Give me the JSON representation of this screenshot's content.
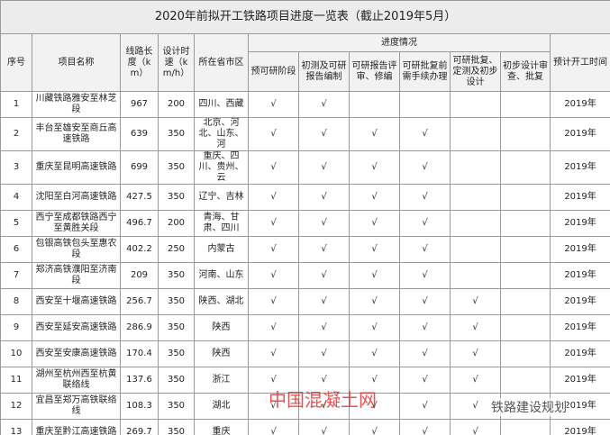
{
  "title": "2020年前拟开工铁路项目进度一览表（截止2019年5月）",
  "header": {
    "columns": [
      "序号",
      "项目名称",
      "线路长度（km）",
      "设计时速（km/h）",
      "所在省市区"
    ],
    "progress_group": "进度情况",
    "progress_columns": [
      "预可研阶段",
      "初测及可研报告编制",
      "可研报告评审、修编",
      "可研批复前需手续办理",
      "可研批复、定测及初步设计",
      "初步设计审查、批复"
    ],
    "last_column": "预计开工时间"
  },
  "table": {
    "rows": [
      [
        "1",
        "川藏铁路雅安至林芝段",
        967,
        200,
        "四川、西藏",
        "√",
        "√",
        null,
        null,
        null,
        null,
        "2019年"
      ],
      [
        "2",
        "丰台至雄安至商丘高速铁路",
        639,
        350,
        "北京、河北、山东、河",
        "√",
        "√",
        "√",
        "√",
        null,
        null,
        "2019年"
      ],
      [
        "3",
        "重庆至昆明高速铁路",
        699,
        350,
        "重庆、四川、贵州、云",
        "√",
        "√",
        "√",
        "√",
        null,
        null,
        "2019年"
      ],
      [
        "4",
        "沈阳至白河高速铁路",
        427.5,
        350,
        "辽宁、吉林",
        "√",
        "√",
        "√",
        "√",
        null,
        null,
        "2019年"
      ],
      [
        "5",
        "西宁至成都铁路西宁至黄胜关段",
        496.7,
        200,
        "青海、甘肃、四川",
        "√",
        "√",
        "√",
        "√",
        null,
        null,
        "2019年"
      ],
      [
        "6",
        "包银高铁包头至惠农段",
        402.2,
        250,
        "内蒙古",
        "√",
        "√",
        "√",
        "√",
        null,
        null,
        "2019年"
      ],
      [
        "7",
        "郑济高铁濮阳至济南段",
        209,
        350,
        "河南、山东",
        "√",
        "√",
        "√",
        "√",
        null,
        null,
        "2019年"
      ],
      [
        "8",
        "西安至十堰高速铁路",
        256.7,
        350,
        "陕西、湖北",
        "√",
        "√",
        "√",
        "√",
        "√",
        null,
        "2019年"
      ],
      [
        "9",
        "西安至延安高速铁路",
        286.9,
        350,
        "陕西",
        "√",
        "√",
        "√",
        "√",
        "√",
        null,
        "2019年"
      ],
      [
        "10",
        "西安至安康高速铁路",
        170.4,
        350,
        "陕西",
        "√",
        "√",
        "√",
        "√",
        "√",
        null,
        "2019年"
      ],
      [
        "11",
        "湖州至杭州西至杭黄联络线",
        137.6,
        350,
        "浙江",
        "√",
        "√",
        "√",
        "√",
        "√",
        null,
        "2019年"
      ],
      [
        "12",
        "宜昌至郑万高铁联络线",
        108.3,
        350,
        "湖北",
        "√",
        "√",
        "√",
        "√",
        "√",
        null,
        "2019年"
      ],
      [
        "13",
        "重庆至黔江高速铁路",
        269.7,
        350,
        "重庆",
        "√",
        "√",
        "√",
        "√",
        "√",
        null,
        "2019年"
      ]
    ]
  },
  "watermarks": [
    "中国混凝土网",
    "铁路建设规划"
  ]
}
